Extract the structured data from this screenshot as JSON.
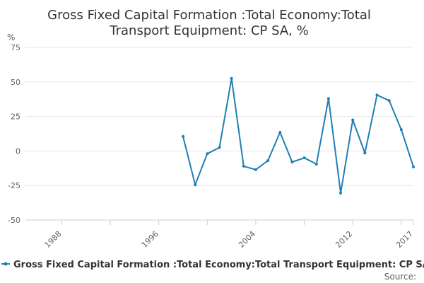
{
  "chart_data": {
    "type": "line",
    "title_lines": [
      "Gross Fixed Capital Formation :Total Economy:Total",
      "Transport Equipment: CP SA, %"
    ],
    "y_unit": "%",
    "ylim": [
      -50,
      75
    ],
    "y_ticks": [
      75,
      50,
      25,
      0,
      -25,
      -50
    ],
    "xlim": [
      1985,
      2017
    ],
    "x_ticks": [
      1988,
      1996,
      2004,
      2012,
      2017
    ],
    "grid": true,
    "legend_position": "bottom",
    "series": [
      {
        "name": "Gross Fixed Capital Formation :Total Economy:Total Transport Equipment: CP SA, %",
        "color": "#1f7fb4",
        "x": [
          1998,
          1999,
          2000,
          2001,
          2002,
          2003,
          2004,
          2005,
          2006,
          2007,
          2008,
          2009,
          2010,
          2011,
          2012,
          2013,
          2014,
          2015,
          2016,
          2017
        ],
        "values": [
          10.5,
          -24.5,
          -2,
          2.5,
          52.5,
          -11,
          -13.5,
          -7,
          13.5,
          -8,
          -5,
          -9.5,
          38,
          -30.5,
          22.5,
          -1.5,
          40.5,
          36.5,
          15.5,
          -11.5
        ]
      }
    ],
    "credit": "Source:"
  }
}
